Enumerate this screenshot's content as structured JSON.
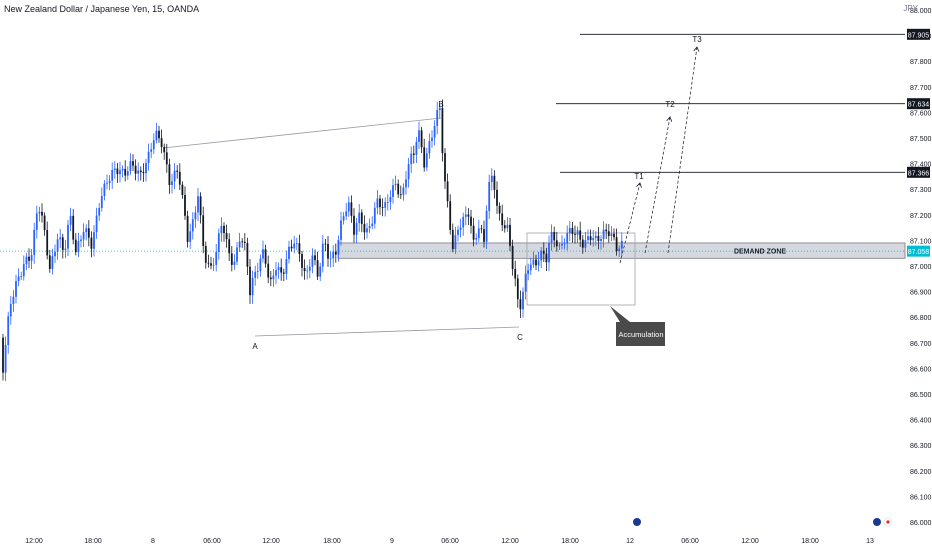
{
  "header": {
    "title": "New Zealand Dollar / Japanese Yen, 15, OANDA",
    "currency": "JPY"
  },
  "colors": {
    "bull": "#2962ff",
    "bear": "#131722",
    "accent": "#00bcd4",
    "zone": "#e0e3eb",
    "callout": "#4a4a4a"
  },
  "icons": [
    "flag-nz-icon",
    "flag-jp-icon"
  ],
  "chart_data": {
    "type": "candlestick",
    "ylim": [
      86.0,
      88.0
    ],
    "y_ticks": [
      "88.000",
      "87.900",
      "87.800",
      "87.700",
      "87.600",
      "87.500",
      "87.400",
      "87.300",
      "87.200",
      "87.100",
      "87.000",
      "86.900",
      "86.800",
      "86.700",
      "86.600",
      "86.500",
      "86.400",
      "86.300",
      "86.200",
      "86.100",
      "86.000"
    ],
    "x_ticks": [
      "12:00",
      "18:00",
      "8",
      "06:00",
      "12:00",
      "18:00",
      "9",
      "06:00",
      "12:00",
      "18:00",
      "12",
      "06:00",
      "12:00",
      "18:00",
      "13"
    ],
    "price_path": [
      [
        0,
        86.72
      ],
      [
        3,
        86.6
      ],
      [
        10,
        86.85
      ],
      [
        18,
        86.95
      ],
      [
        26,
        87.02
      ],
      [
        32,
        87.05
      ],
      [
        38,
        87.25
      ],
      [
        44,
        87.15
      ],
      [
        50,
        86.98
      ],
      [
        58,
        87.12
      ],
      [
        64,
        87.05
      ],
      [
        70,
        87.2
      ],
      [
        76,
        87.05
      ],
      [
        84,
        87.15
      ],
      [
        92,
        87.08
      ],
      [
        100,
        87.26
      ],
      [
        108,
        87.34
      ],
      [
        116,
        87.38
      ],
      [
        124,
        87.36
      ],
      [
        132,
        87.4
      ],
      [
        140,
        87.35
      ],
      [
        148,
        87.42
      ],
      [
        155,
        87.52
      ],
      [
        162,
        87.48
      ],
      [
        170,
        87.32
      ],
      [
        178,
        87.38
      ],
      [
        184,
        87.22
      ],
      [
        188,
        87.1
      ],
      [
        193,
        87.17
      ],
      [
        198,
        87.28
      ],
      [
        204,
        87.05
      ],
      [
        210,
        86.98
      ],
      [
        216,
        87.05
      ],
      [
        222,
        87.18
      ],
      [
        228,
        87.06
      ],
      [
        234,
        87.0
      ],
      [
        240,
        87.12
      ],
      [
        246,
        87.06
      ],
      [
        250,
        86.9
      ],
      [
        254,
        86.96
      ],
      [
        258,
        87.0
      ],
      [
        264,
        87.06
      ],
      [
        270,
        86.92
      ],
      [
        276,
        87.0
      ],
      [
        282,
        86.96
      ],
      [
        288,
        87.05
      ],
      [
        294,
        87.1
      ],
      [
        300,
        87.04
      ],
      [
        306,
        86.95
      ],
      [
        312,
        87.05
      ],
      [
        318,
        86.96
      ],
      [
        324,
        87.1
      ],
      [
        330,
        87.02
      ],
      [
        336,
        87.06
      ],
      [
        342,
        87.18
      ],
      [
        348,
        87.25
      ],
      [
        354,
        87.14
      ],
      [
        360,
        87.2
      ],
      [
        366,
        87.12
      ],
      [
        372,
        87.18
      ],
      [
        378,
        87.26
      ],
      [
        384,
        87.22
      ],
      [
        390,
        87.28
      ],
      [
        396,
        87.32
      ],
      [
        402,
        87.26
      ],
      [
        408,
        87.4
      ],
      [
        414,
        87.44
      ],
      [
        418,
        87.54
      ],
      [
        424,
        87.4
      ],
      [
        430,
        87.48
      ],
      [
        436,
        87.58
      ],
      [
        440,
        87.62
      ],
      [
        444,
        87.35
      ],
      [
        449,
        87.2
      ],
      [
        453,
        87.06
      ],
      [
        458,
        87.15
      ],
      [
        464,
        87.18
      ],
      [
        468,
        87.22
      ],
      [
        474,
        87.08
      ],
      [
        478,
        87.16
      ],
      [
        484,
        87.1
      ],
      [
        488,
        87.3
      ],
      [
        493,
        87.36
      ],
      [
        498,
        87.2
      ],
      [
        504,
        87.16
      ],
      [
        508,
        87.14
      ],
      [
        512,
        87.02
      ],
      [
        516,
        86.92
      ],
      [
        519,
        86.82
      ],
      [
        522,
        86.88
      ],
      [
        526,
        86.96
      ],
      [
        530,
        87.02
      ],
      [
        536,
        87.0
      ],
      [
        540,
        87.06
      ],
      [
        546,
        87.02
      ],
      [
        550,
        87.12
      ],
      [
        556,
        87.1
      ],
      [
        560,
        87.06
      ],
      [
        566,
        87.12
      ],
      [
        572,
        87.14
      ],
      [
        578,
        87.12
      ],
      [
        584,
        87.08
      ],
      [
        590,
        87.12
      ],
      [
        596,
        87.1
      ],
      [
        602,
        87.12
      ],
      [
        608,
        87.14
      ],
      [
        614,
        87.1
      ],
      [
        618,
        87.06
      ],
      [
        620,
        87.08
      ]
    ],
    "levels": [
      {
        "label": "87.905",
        "value": 87.905
      },
      {
        "label": "87.634",
        "value": 87.634
      },
      {
        "label": "87.366",
        "value": 87.366
      }
    ],
    "current_price": {
      "label": "87.058",
      "value": 87.058
    },
    "demand_zone": {
      "label": "DEMAND ZONE",
      "top": 87.09,
      "bottom": 87.03
    },
    "targets": [
      "T1",
      "T2",
      "T3"
    ],
    "points": [
      "A",
      "B",
      "C"
    ],
    "annotation": "Accumulation"
  }
}
